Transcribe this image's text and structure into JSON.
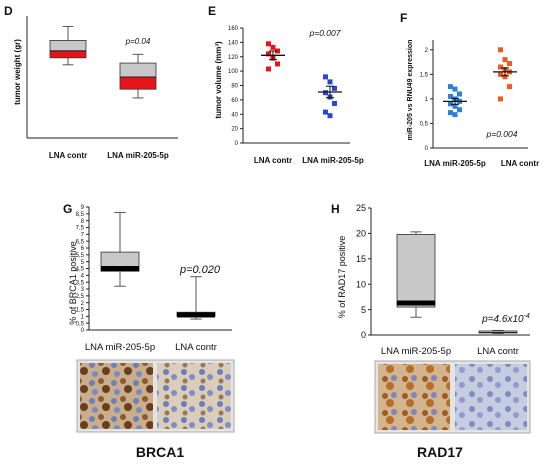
{
  "colors": {
    "red": "#e8141c",
    "blue": "#2a45d6",
    "orange": "#f05a20",
    "light_blue": "#2b7fd6",
    "gray_box": "#c8c8c8",
    "median_dark": "#000000"
  },
  "chart_data": [
    {
      "panel": "D",
      "type": "box",
      "ylabel": "tumor weight (gr)",
      "categories": [
        "LNA contr",
        "LNA miR-205-5p"
      ],
      "ylim": [
        0,
        0.7
      ],
      "annotation": "p=0.04",
      "boxes": [
        {
          "min": 0.42,
          "q1": 0.46,
          "median": 0.5,
          "q3": 0.56,
          "max": 0.64
        },
        {
          "min": 0.23,
          "q1": 0.28,
          "median": 0.35,
          "q3": 0.43,
          "max": 0.48
        }
      ]
    },
    {
      "panel": "E",
      "type": "scatter",
      "ylabel": "tumor volume (mm³)",
      "categories": [
        "LNA contr",
        "LNA miR-205-5p"
      ],
      "ylim": [
        0,
        160
      ],
      "yticks": [
        0,
        20,
        40,
        60,
        80,
        100,
        120,
        140,
        160
      ],
      "annotation": "p=0.007",
      "series": [
        {
          "values": [
            138,
            133,
            128,
            124,
            118,
            110,
            103
          ],
          "mean": 122,
          "sem": 6
        },
        {
          "values": [
            92,
            85,
            76,
            70,
            64,
            55,
            43,
            38
          ],
          "mean": 71,
          "sem": 8
        }
      ]
    },
    {
      "panel": "F",
      "type": "scatter",
      "ylabel": "miR-205 vs RNU49 expression",
      "categories": [
        "LNA miR-205-5p",
        "LNA contr"
      ],
      "ylim": [
        0,
        2.2
      ],
      "yticks": [
        0,
        0.5,
        1,
        1.5,
        2
      ],
      "ytick_labels": [
        "0",
        "0,5",
        "1",
        "1,5",
        "2"
      ],
      "annotation": "p=0.004",
      "series": [
        {
          "values": [
            1.25,
            1.2,
            1.1,
            1.05,
            1.0,
            0.95,
            0.9,
            0.85,
            0.78,
            0.72,
            0.68
          ],
          "mean": 0.95,
          "sem": 0.06
        },
        {
          "values": [
            2.0,
            1.8,
            1.72,
            1.65,
            1.6,
            1.55,
            1.5,
            1.45,
            1.25,
            1.0
          ],
          "mean": 1.55,
          "sem": 0.08
        }
      ]
    },
    {
      "panel": "G",
      "type": "box",
      "title": "BRCA1",
      "ylabel": "% of BRCA1 positive",
      "categories": [
        "LNA miR-205-5p",
        "LNA contr"
      ],
      "ylim": [
        0,
        9
      ],
      "yticks": [
        0,
        0.5,
        1,
        1.5,
        2,
        2.5,
        3,
        3.5,
        4,
        4.5,
        5,
        5.5,
        6,
        6.5,
        7,
        7.5,
        8,
        8.5,
        9
      ],
      "ytick_labels": [
        "0",
        "0,5",
        "1",
        "1,5",
        "2",
        "2,5",
        "3",
        "3,5",
        "4",
        "4,5",
        "5",
        "5,5",
        "6",
        "6,5",
        "7",
        "7,5",
        "8",
        "8,5",
        "9"
      ],
      "annotation": "p=0.020",
      "boxes": [
        {
          "min": 3.2,
          "q1": 4.3,
          "median": 4.5,
          "q3": 5.7,
          "max": 8.6
        },
        {
          "min": 0.8,
          "q1": 1.0,
          "median": 1.1,
          "q3": 1.3,
          "max": 3.9
        }
      ]
    },
    {
      "panel": "H",
      "type": "box",
      "title": "RAD17",
      "ylabel": "% of RAD17 positive",
      "categories": [
        "LNA miR-205-5p",
        "LNA contr"
      ],
      "ylim": [
        0,
        25
      ],
      "yticks": [
        0,
        5,
        10,
        15,
        20,
        25
      ],
      "annotation_main": "p=4.6x10",
      "annotation_exp": "-4",
      "boxes": [
        {
          "min": 3.5,
          "q1": 5.5,
          "median": 6.3,
          "q3": 19.8,
          "max": 20.3
        },
        {
          "min": 0.3,
          "q1": 0.4,
          "median": 0.5,
          "q3": 0.8,
          "max": 0.9
        }
      ]
    }
  ]
}
